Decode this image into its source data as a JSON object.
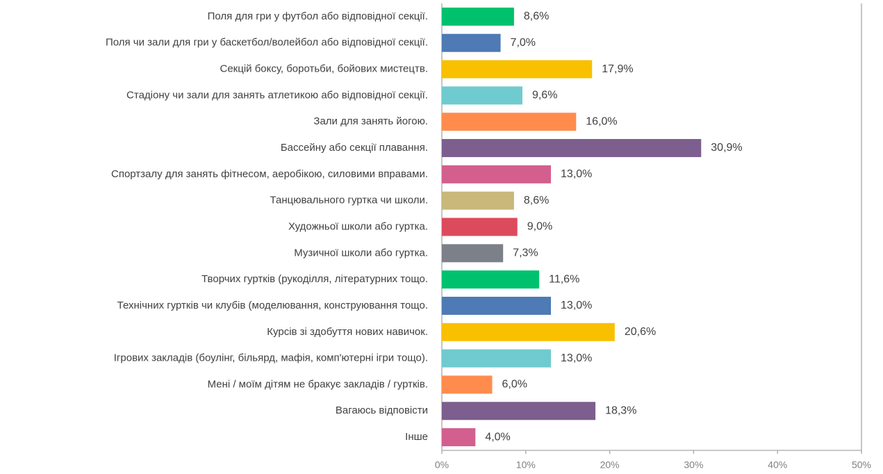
{
  "chart_data": {
    "type": "barh",
    "categories": [
      "Поля для гри у футбол або відповідної секції.",
      "Поля чи зали для гри у баскетбол/волейбол або відповідної секції.",
      "Секцій боксу, боротьби, бойових мистецтв.",
      "Стадіону чи зали для занять атлетикою або відповідної секції.",
      "Зали для занять йогою.",
      "Бассейну або секції плавання.",
      "Спортзалу для занять фітнесом, аеробікою, силовими вправами.",
      "Танцювального гуртка чи школи.",
      "Художньої школи або гуртка.",
      "Музичної школи або гуртка.",
      "Творчих гуртків (рукоділля, літературних тощо.",
      "Технічних гуртків чи клубів (моделювання, конструювання тощо.",
      "Курсів зі здобуття нових навичок.",
      "Ігрових закладів (боулінг, більярд, мафія, комп'ютерні ігри тощо).",
      "Мені / моїм дітям не бракує закладів / гуртків.",
      "Вагаюсь відповісти",
      "Інше"
    ],
    "values": [
      8.6,
      7.0,
      17.9,
      9.6,
      16.0,
      30.9,
      13.0,
      8.6,
      9.0,
      7.3,
      11.6,
      13.0,
      20.6,
      13.0,
      6.0,
      18.3,
      4.0
    ],
    "value_labels": [
      "8,6%",
      "7,0%",
      "17,9%",
      "9,6%",
      "16,0%",
      "30,9%",
      "13,0%",
      "8,6%",
      "9,0%",
      "7,3%",
      "11,6%",
      "13,0%",
      "20,6%",
      "13,0%",
      "6,0%",
      "18,3%",
      "4,0%"
    ],
    "colors": [
      "#00c16e",
      "#4e7ab5",
      "#f9c000",
      "#6fcbcf",
      "#ff8c4d",
      "#7c5e8f",
      "#d35f8e",
      "#c8b87a",
      "#dc4b5c",
      "#7b8089",
      "#00c16e",
      "#4e7ab5",
      "#f9c000",
      "#6fcbcf",
      "#ff8c4d",
      "#7c5e8f",
      "#d35f8e"
    ],
    "xlim": [
      0,
      50
    ],
    "xticks": [
      {
        "value": 0,
        "label": "0%"
      },
      {
        "value": 10,
        "label": "10%"
      },
      {
        "value": 20,
        "label": "20%"
      },
      {
        "value": 30,
        "label": "30%"
      },
      {
        "value": 40,
        "label": "40%"
      },
      {
        "value": 50,
        "label": "50%"
      }
    ],
    "grid": false
  }
}
